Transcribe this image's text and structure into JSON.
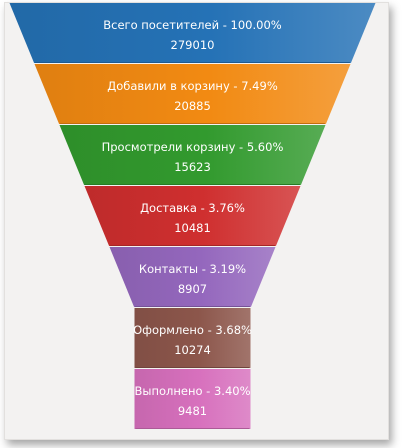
{
  "chart_data": {
    "type": "funnel",
    "segments": [
      {
        "name": "Всего посетителей",
        "percent": "100.00%",
        "value": 279010,
        "color": "#2572b6"
      },
      {
        "name": "Добавили в корзину",
        "percent": "7.49%",
        "value": 20885,
        "color": "#f28a12"
      },
      {
        "name": "Просмотрели корзину",
        "percent": "5.60%",
        "value": 15623,
        "color": "#329a2e"
      },
      {
        "name": "Доставка",
        "percent": "3.76%",
        "value": 10481,
        "color": "#cf2f2f"
      },
      {
        "name": "Контакты",
        "percent": "3.19%",
        "value": 8907,
        "color": "#9467bd"
      },
      {
        "name": "Оформлено",
        "percent": "3.68%",
        "value": 10274,
        "color": "#8c564b"
      },
      {
        "name": "Выполнено",
        "percent": "3.40%",
        "value": 9481,
        "color": "#d770bd"
      }
    ]
  }
}
